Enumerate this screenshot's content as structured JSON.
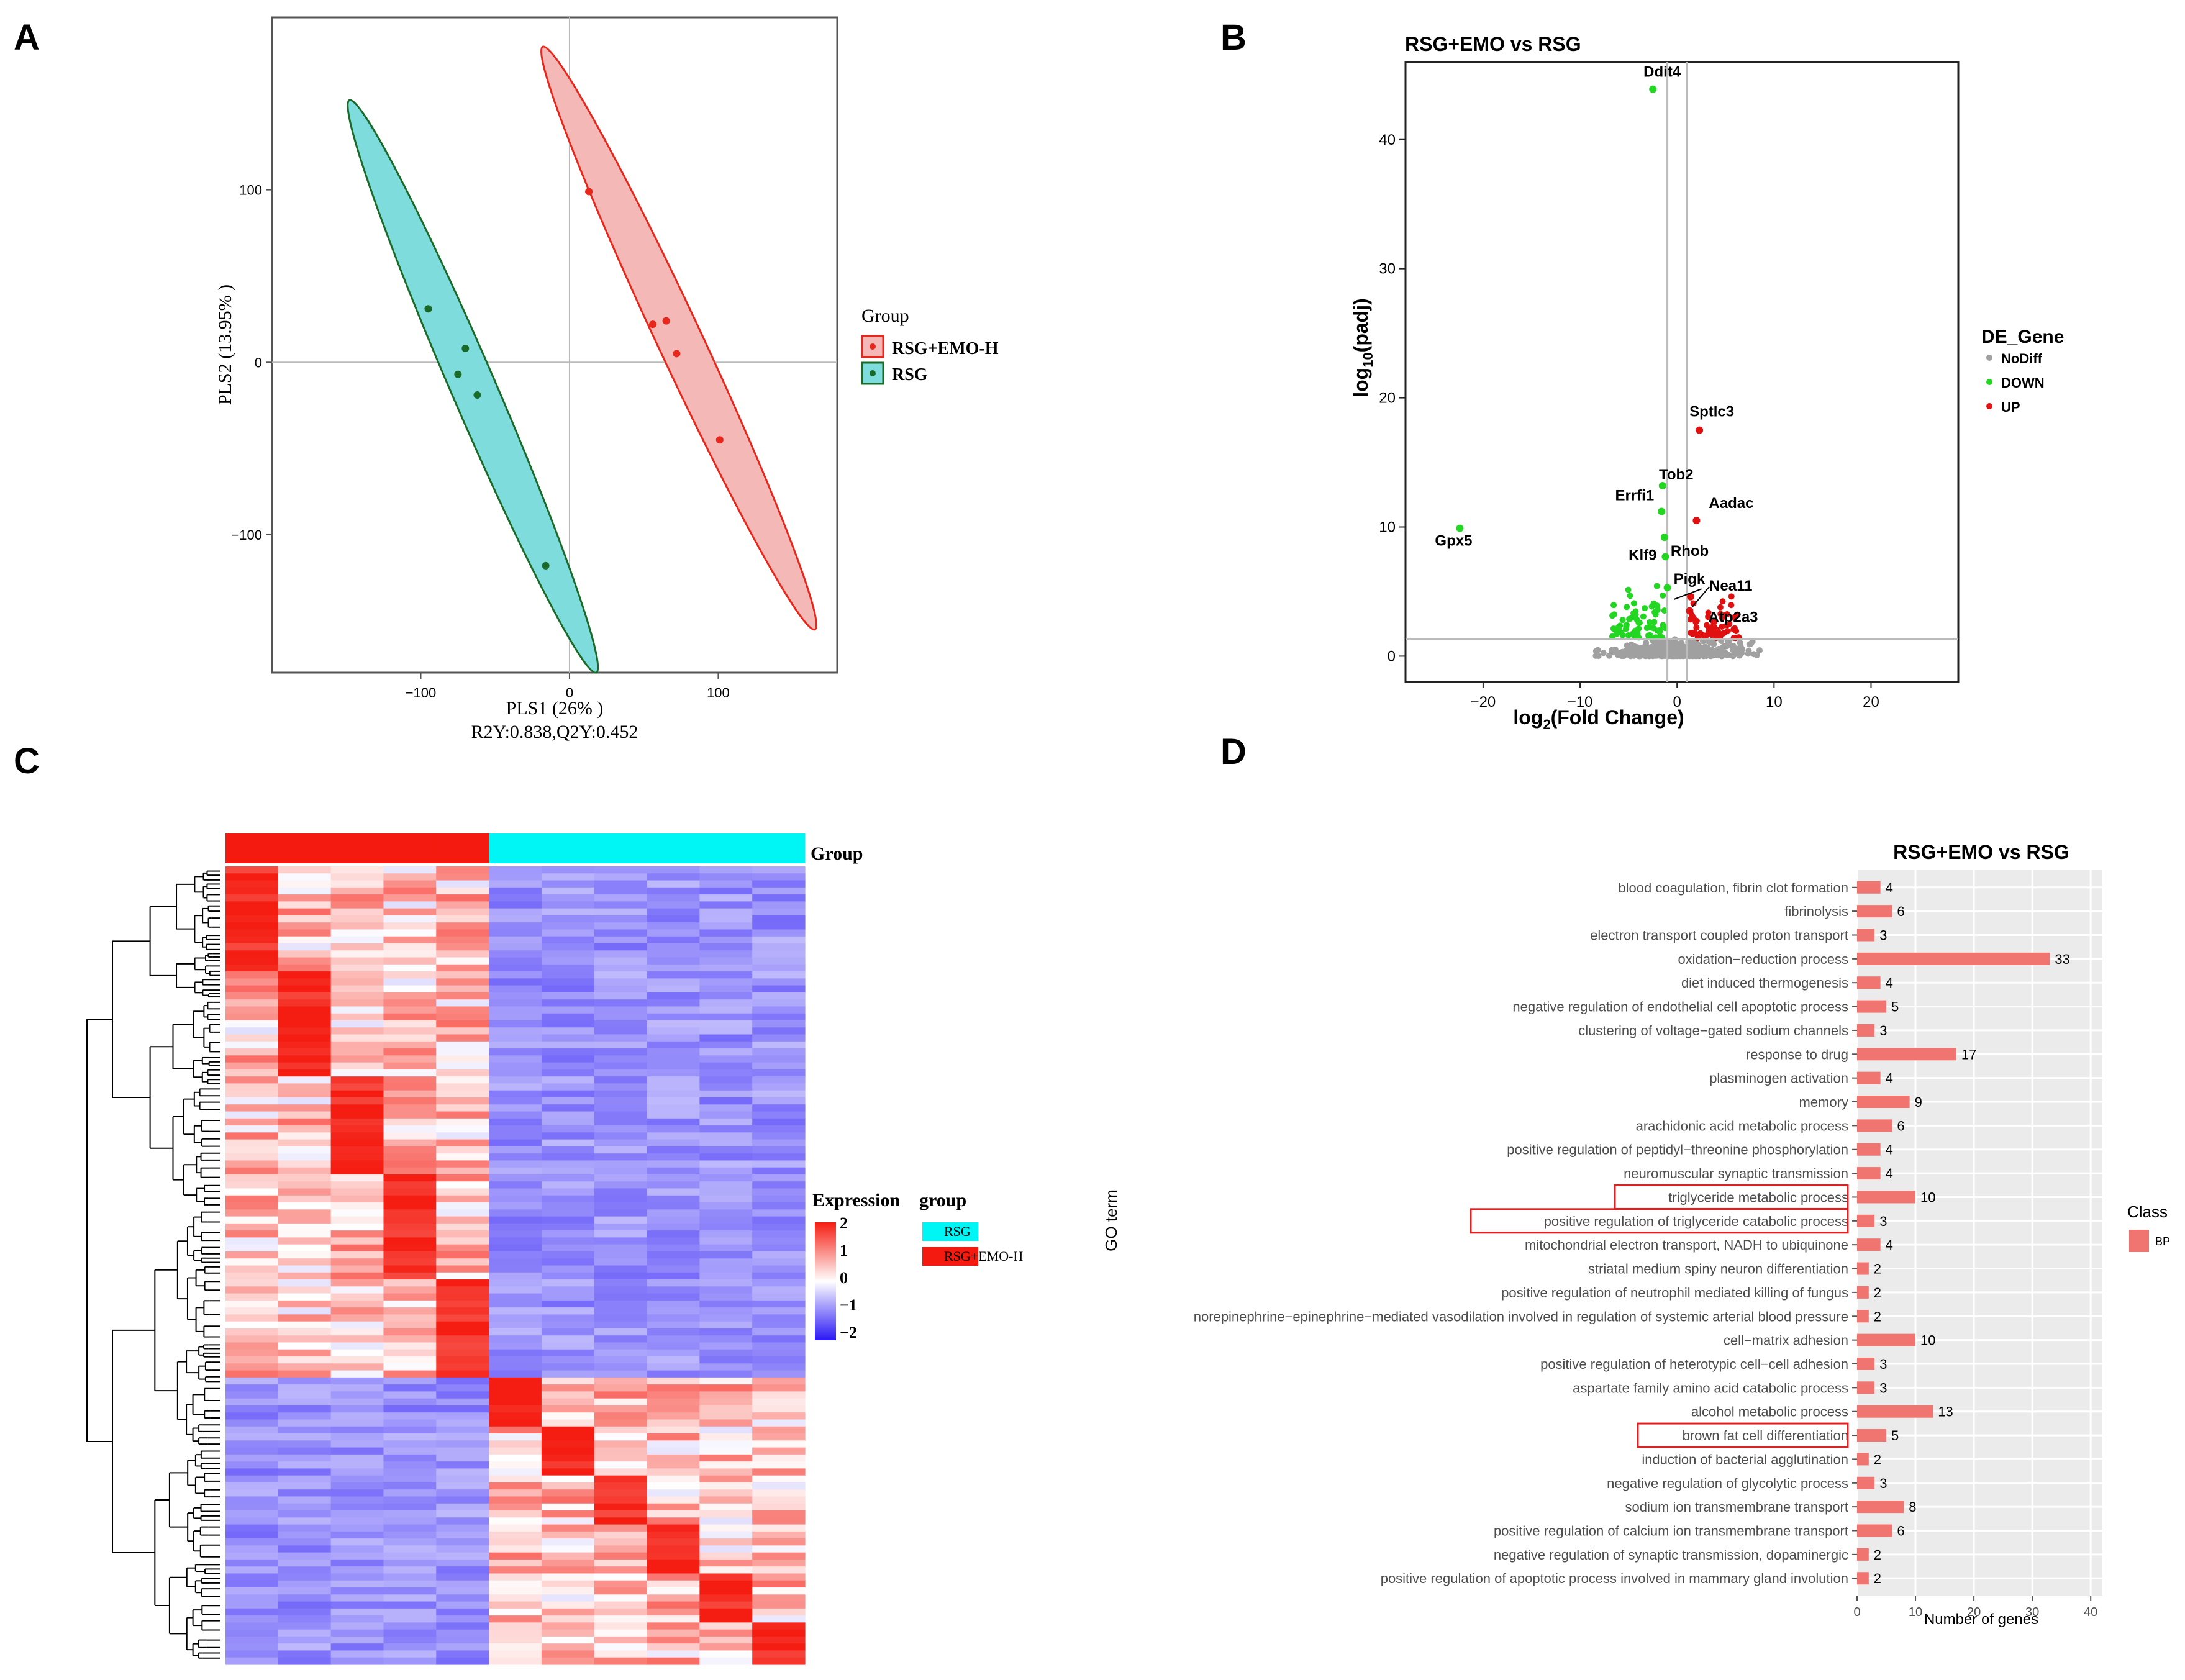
{
  "panel_labels": [
    "A",
    "B",
    "C",
    "D"
  ],
  "colors": {
    "rsg_emo_fill": "#f4b8b6",
    "rsg_emo_line": "#e8271c",
    "rsg_fill": "#7fdcdc",
    "rsg_line": "#1a6b2a",
    "up": "#e01010",
    "down": "#22d622",
    "nodiff": "#a0a0a0",
    "bar": "#f07470",
    "panel_bg": "#ebebeb",
    "highlight_box": "#e02020",
    "heat_high": "#f51d12",
    "heat_mid": "#ffffff",
    "heat_low": "#2a18f5",
    "group_rsg": "#00f5f5",
    "group_emo": "#f51a0f"
  },
  "chart_data": [
    {
      "type": "scatter",
      "id": "A",
      "xlabel": "PLS1 (26% )",
      "ylabel": "PLS2 (13.95% )",
      "subtitle": "R2Y:0.838,Q2Y:0.452",
      "xlim": [
        -200,
        180
      ],
      "ylim": [
        -180,
        200
      ],
      "xticks": [
        -100,
        0,
        100
      ],
      "yticks": [
        -100,
        0,
        100
      ],
      "legend_title": "Group",
      "series": [
        {
          "name": "RSG+EMO-H",
          "points": [
            [
              13,
              99
            ],
            [
              56,
              22
            ],
            [
              65,
              24
            ],
            [
              72,
              5
            ],
            [
              101,
              -45
            ]
          ]
        },
        {
          "name": "RSG",
          "points": [
            [
              -95,
              31
            ],
            [
              -70,
              8
            ],
            [
              -75,
              -7
            ],
            [
              -62,
              -19
            ],
            [
              -16,
              -118
            ]
          ]
        }
      ]
    },
    {
      "type": "scatter",
      "id": "B",
      "title": "RSG+EMO vs RSG",
      "xlabel": "log2(Fold Change)",
      "ylabel": "log10(padj)",
      "xlim": [
        -28,
        29
      ],
      "ylim": [
        -2,
        46
      ],
      "xticks": [
        -20,
        -10,
        0,
        10,
        20
      ],
      "yticks": [
        0,
        10,
        20,
        30,
        40
      ],
      "legend_title": "DE_Gene",
      "legend": [
        "NoDiff",
        "DOWN",
        "UP"
      ],
      "vlines": [
        -1,
        1
      ],
      "hline": 1.3,
      "labeled_points": [
        {
          "gene": "Ddit4",
          "x": -2.5,
          "y": 43.9,
          "class": "DOWN"
        },
        {
          "gene": "Sptlc3",
          "x": 2.3,
          "y": 17.5,
          "class": "UP"
        },
        {
          "gene": "Tob2",
          "x": -1.5,
          "y": 13.2,
          "class": "DOWN"
        },
        {
          "gene": "Errfi1",
          "x": -1.6,
          "y": 11.2,
          "class": "DOWN"
        },
        {
          "gene": "Aadac",
          "x": 2.0,
          "y": 10.5,
          "class": "UP"
        },
        {
          "gene": "Gpx5",
          "x": -22.4,
          "y": 9.9,
          "class": "DOWN"
        },
        {
          "gene": "Rhob",
          "x": -1.3,
          "y": 9.2,
          "class": "DOWN"
        },
        {
          "gene": "Klf9",
          "x": -1.2,
          "y": 7.7,
          "class": "DOWN"
        },
        {
          "gene": "Pigk",
          "x": -1.0,
          "y": 5.3,
          "class": "DOWN"
        },
        {
          "gene": "Nea11",
          "x": 1.4,
          "y": 4.6,
          "class": "UP"
        },
        {
          "gene": "Atp2a3",
          "x": 1.3,
          "y": 3.5,
          "class": "UP"
        }
      ]
    },
    {
      "type": "heatmap",
      "id": "C",
      "col_annotation_label": "Group",
      "scale_title": "Expression",
      "scale_ticks": [
        "2",
        "1",
        "0",
        "−1",
        "−2"
      ],
      "legend_title": "group",
      "legend": [
        "RSG",
        "RSG+EMO-H"
      ],
      "columns": 11,
      "column_groups": [
        "RSG+EMO-H",
        "RSG+EMO-H",
        "RSG+EMO-H",
        "RSG+EMO-H",
        "RSG+EMO-H",
        "RSG",
        "RSG",
        "RSG",
        "RSG",
        "RSG",
        "RSG"
      ],
      "rows": 114
    },
    {
      "type": "bar",
      "id": "D",
      "orientation": "horizontal",
      "title": "RSG+EMO vs RSG",
      "xlabel": "Number of genes",
      "ylabel": "GO term",
      "xlim": [
        0,
        42
      ],
      "xticks": [
        0,
        10,
        20,
        30,
        40
      ],
      "legend_title": "Class",
      "legend": [
        "BP"
      ],
      "categories": [
        "blood coagulation, fibrin clot formation",
        "fibrinolysis",
        "electron transport coupled proton transport",
        "oxidation−reduction process",
        "diet induced thermogenesis",
        "negative regulation of endothelial cell apoptotic process",
        "clustering of voltage−gated sodium channels",
        "response to drug",
        "plasminogen activation",
        "memory",
        "arachidonic acid metabolic process",
        "positive regulation of peptidyl−threonine phosphorylation",
        "neuromuscular synaptic transmission",
        "triglyceride metabolic process",
        "positive regulation of triglyceride catabolic process",
        "mitochondrial electron transport, NADH to ubiquinone",
        "striatal medium spiny neuron differentiation",
        "positive regulation of neutrophil mediated killing of fungus",
        "norepinephrine−epinephrine−mediated vasodilation involved in regulation of systemic arterial blood pressure",
        "cell−matrix adhesion",
        "positive regulation of heterotypic cell−cell adhesion",
        "aspartate family amino acid catabolic process",
        "alcohol metabolic process",
        "brown fat cell differentiation",
        "induction of bacterial agglutination",
        "negative regulation of glycolytic process",
        "sodium ion transmembrane transport",
        "positive regulation of calcium ion transmembrane transport",
        "negative regulation of synaptic transmission, dopaminergic",
        "positive regulation of apoptotic process involved in mammary gland involution"
      ],
      "values": [
        4,
        6,
        3,
        33,
        4,
        5,
        3,
        17,
        4,
        9,
        6,
        4,
        4,
        10,
        3,
        4,
        2,
        2,
        2,
        10,
        3,
        3,
        13,
        5,
        2,
        3,
        8,
        6,
        2,
        2
      ],
      "highlighted": [
        13,
        14,
        23
      ]
    }
  ]
}
